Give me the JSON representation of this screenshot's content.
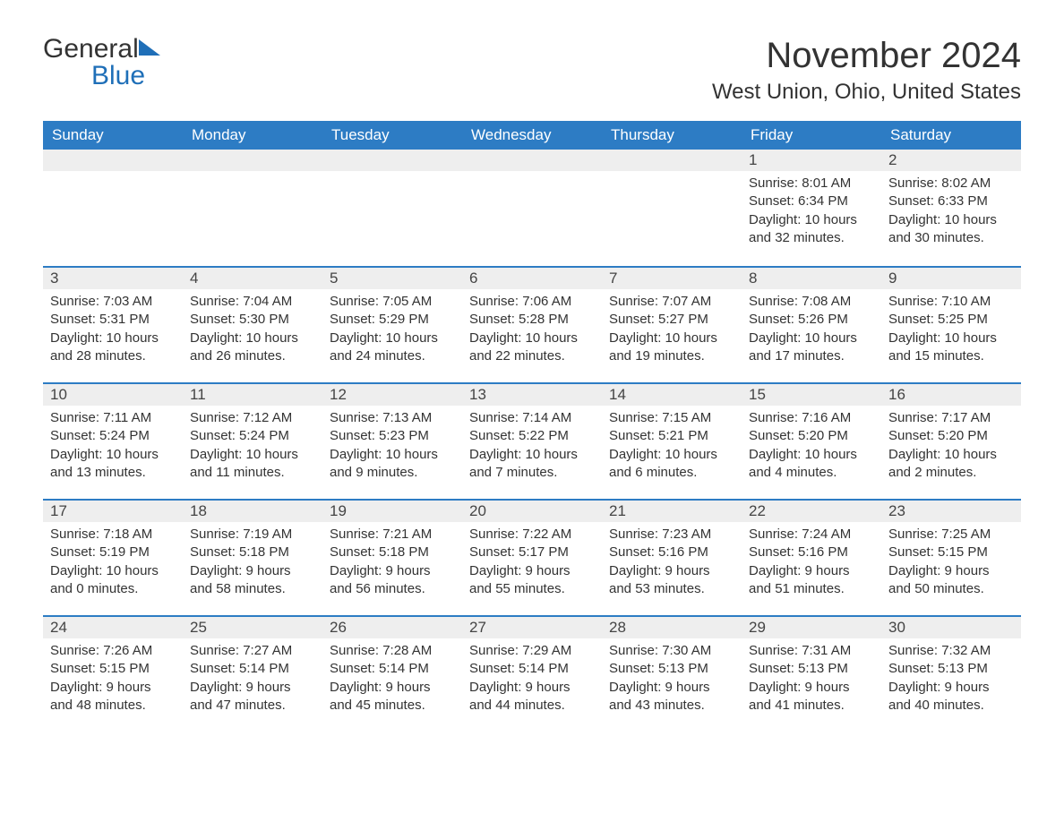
{
  "logo": {
    "text1": "General",
    "text2": "Blue"
  },
  "title": "November 2024",
  "location": "West Union, Ohio, United States",
  "colors": {
    "header_bg": "#2d7cc4",
    "header_text": "#ffffff",
    "daynum_bg": "#eeeeee",
    "border_top": "#2d7cc4",
    "body_text": "#333333",
    "logo_blue": "#1f6fb8",
    "background": "#ffffff"
  },
  "days_of_week": [
    "Sunday",
    "Monday",
    "Tuesday",
    "Wednesday",
    "Thursday",
    "Friday",
    "Saturday"
  ],
  "weeks": [
    [
      {
        "empty": true
      },
      {
        "empty": true
      },
      {
        "empty": true
      },
      {
        "empty": true
      },
      {
        "empty": true
      },
      {
        "day": "1",
        "sunrise": "Sunrise: 8:01 AM",
        "sunset": "Sunset: 6:34 PM",
        "daylight1": "Daylight: 10 hours",
        "daylight2": "and 32 minutes."
      },
      {
        "day": "2",
        "sunrise": "Sunrise: 8:02 AM",
        "sunset": "Sunset: 6:33 PM",
        "daylight1": "Daylight: 10 hours",
        "daylight2": "and 30 minutes."
      }
    ],
    [
      {
        "day": "3",
        "sunrise": "Sunrise: 7:03 AM",
        "sunset": "Sunset: 5:31 PM",
        "daylight1": "Daylight: 10 hours",
        "daylight2": "and 28 minutes."
      },
      {
        "day": "4",
        "sunrise": "Sunrise: 7:04 AM",
        "sunset": "Sunset: 5:30 PM",
        "daylight1": "Daylight: 10 hours",
        "daylight2": "and 26 minutes."
      },
      {
        "day": "5",
        "sunrise": "Sunrise: 7:05 AM",
        "sunset": "Sunset: 5:29 PM",
        "daylight1": "Daylight: 10 hours",
        "daylight2": "and 24 minutes."
      },
      {
        "day": "6",
        "sunrise": "Sunrise: 7:06 AM",
        "sunset": "Sunset: 5:28 PM",
        "daylight1": "Daylight: 10 hours",
        "daylight2": "and 22 minutes."
      },
      {
        "day": "7",
        "sunrise": "Sunrise: 7:07 AM",
        "sunset": "Sunset: 5:27 PM",
        "daylight1": "Daylight: 10 hours",
        "daylight2": "and 19 minutes."
      },
      {
        "day": "8",
        "sunrise": "Sunrise: 7:08 AM",
        "sunset": "Sunset: 5:26 PM",
        "daylight1": "Daylight: 10 hours",
        "daylight2": "and 17 minutes."
      },
      {
        "day": "9",
        "sunrise": "Sunrise: 7:10 AM",
        "sunset": "Sunset: 5:25 PM",
        "daylight1": "Daylight: 10 hours",
        "daylight2": "and 15 minutes."
      }
    ],
    [
      {
        "day": "10",
        "sunrise": "Sunrise: 7:11 AM",
        "sunset": "Sunset: 5:24 PM",
        "daylight1": "Daylight: 10 hours",
        "daylight2": "and 13 minutes."
      },
      {
        "day": "11",
        "sunrise": "Sunrise: 7:12 AM",
        "sunset": "Sunset: 5:24 PM",
        "daylight1": "Daylight: 10 hours",
        "daylight2": "and 11 minutes."
      },
      {
        "day": "12",
        "sunrise": "Sunrise: 7:13 AM",
        "sunset": "Sunset: 5:23 PM",
        "daylight1": "Daylight: 10 hours",
        "daylight2": "and 9 minutes."
      },
      {
        "day": "13",
        "sunrise": "Sunrise: 7:14 AM",
        "sunset": "Sunset: 5:22 PM",
        "daylight1": "Daylight: 10 hours",
        "daylight2": "and 7 minutes."
      },
      {
        "day": "14",
        "sunrise": "Sunrise: 7:15 AM",
        "sunset": "Sunset: 5:21 PM",
        "daylight1": "Daylight: 10 hours",
        "daylight2": "and 6 minutes."
      },
      {
        "day": "15",
        "sunrise": "Sunrise: 7:16 AM",
        "sunset": "Sunset: 5:20 PM",
        "daylight1": "Daylight: 10 hours",
        "daylight2": "and 4 minutes."
      },
      {
        "day": "16",
        "sunrise": "Sunrise: 7:17 AM",
        "sunset": "Sunset: 5:20 PM",
        "daylight1": "Daylight: 10 hours",
        "daylight2": "and 2 minutes."
      }
    ],
    [
      {
        "day": "17",
        "sunrise": "Sunrise: 7:18 AM",
        "sunset": "Sunset: 5:19 PM",
        "daylight1": "Daylight: 10 hours",
        "daylight2": "and 0 minutes."
      },
      {
        "day": "18",
        "sunrise": "Sunrise: 7:19 AM",
        "sunset": "Sunset: 5:18 PM",
        "daylight1": "Daylight: 9 hours",
        "daylight2": "and 58 minutes."
      },
      {
        "day": "19",
        "sunrise": "Sunrise: 7:21 AM",
        "sunset": "Sunset: 5:18 PM",
        "daylight1": "Daylight: 9 hours",
        "daylight2": "and 56 minutes."
      },
      {
        "day": "20",
        "sunrise": "Sunrise: 7:22 AM",
        "sunset": "Sunset: 5:17 PM",
        "daylight1": "Daylight: 9 hours",
        "daylight2": "and 55 minutes."
      },
      {
        "day": "21",
        "sunrise": "Sunrise: 7:23 AM",
        "sunset": "Sunset: 5:16 PM",
        "daylight1": "Daylight: 9 hours",
        "daylight2": "and 53 minutes."
      },
      {
        "day": "22",
        "sunrise": "Sunrise: 7:24 AM",
        "sunset": "Sunset: 5:16 PM",
        "daylight1": "Daylight: 9 hours",
        "daylight2": "and 51 minutes."
      },
      {
        "day": "23",
        "sunrise": "Sunrise: 7:25 AM",
        "sunset": "Sunset: 5:15 PM",
        "daylight1": "Daylight: 9 hours",
        "daylight2": "and 50 minutes."
      }
    ],
    [
      {
        "day": "24",
        "sunrise": "Sunrise: 7:26 AM",
        "sunset": "Sunset: 5:15 PM",
        "daylight1": "Daylight: 9 hours",
        "daylight2": "and 48 minutes."
      },
      {
        "day": "25",
        "sunrise": "Sunrise: 7:27 AM",
        "sunset": "Sunset: 5:14 PM",
        "daylight1": "Daylight: 9 hours",
        "daylight2": "and 47 minutes."
      },
      {
        "day": "26",
        "sunrise": "Sunrise: 7:28 AM",
        "sunset": "Sunset: 5:14 PM",
        "daylight1": "Daylight: 9 hours",
        "daylight2": "and 45 minutes."
      },
      {
        "day": "27",
        "sunrise": "Sunrise: 7:29 AM",
        "sunset": "Sunset: 5:14 PM",
        "daylight1": "Daylight: 9 hours",
        "daylight2": "and 44 minutes."
      },
      {
        "day": "28",
        "sunrise": "Sunrise: 7:30 AM",
        "sunset": "Sunset: 5:13 PM",
        "daylight1": "Daylight: 9 hours",
        "daylight2": "and 43 minutes."
      },
      {
        "day": "29",
        "sunrise": "Sunrise: 7:31 AM",
        "sunset": "Sunset: 5:13 PM",
        "daylight1": "Daylight: 9 hours",
        "daylight2": "and 41 minutes."
      },
      {
        "day": "30",
        "sunrise": "Sunrise: 7:32 AM",
        "sunset": "Sunset: 5:13 PM",
        "daylight1": "Daylight: 9 hours",
        "daylight2": "and 40 minutes."
      }
    ]
  ]
}
